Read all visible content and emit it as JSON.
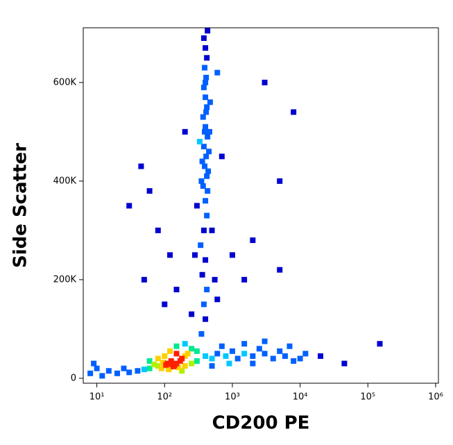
{
  "chart_data": {
    "type": "scatter",
    "x_label": "CD200 PE",
    "y_label": "Side Scatter",
    "xscale": "log",
    "xlim": [
      6.3,
      1100000
    ],
    "ylim": [
      -10000,
      711000
    ],
    "xticks": [
      {
        "value": 10,
        "label": "10¹"
      },
      {
        "value": 100,
        "label": "10²"
      },
      {
        "value": 1000,
        "label": "10³"
      },
      {
        "value": 10000,
        "label": "10⁴"
      },
      {
        "value": 100000,
        "label": "10⁵"
      },
      {
        "value": 1000000,
        "label": "10⁶"
      }
    ],
    "yticks": [
      0,
      {
        "value": 200000,
        "label": "200K"
      },
      {
        "value": 400000,
        "label": "400K"
      },
      {
        "value": 600000,
        "label": "600K"
      }
    ],
    "colormap": [
      "#0000d0",
      "#0060ff",
      "#00c8ff",
      "#00e890",
      "#b0f000",
      "#ffd000",
      "#ff2000"
    ],
    "x": [
      100,
      120,
      130,
      110,
      90,
      140,
      150,
      115,
      125,
      95,
      105,
      135,
      160,
      80,
      170,
      70,
      180,
      200,
      220,
      60,
      50,
      40,
      30,
      25,
      20,
      15,
      12,
      10,
      8,
      9,
      200,
      250,
      180,
      150,
      120,
      100,
      80,
      60,
      250,
      200,
      150,
      300,
      300,
      400,
      500,
      600,
      800,
      1000,
      1200,
      1500,
      2000,
      2500,
      3000,
      4000,
      5000,
      6000,
      8000,
      10000,
      12000,
      7000,
      3000,
      1500,
      700,
      20000,
      45000,
      150000,
      500,
      900,
      2000,
      350,
      400,
      380,
      420,
      360,
      400,
      340,
      380,
      420,
      400,
      370,
      420,
      390,
      410,
      380,
      430,
      400,
      370,
      420,
      400,
      380,
      410,
      390,
      420,
      400,
      380,
      430,
      360,
      450,
      440,
      330,
      350,
      460,
      470,
      300,
      500,
      280,
      550,
      600,
      250,
      430,
      390,
      410,
      400,
      30,
      45,
      60,
      80,
      120,
      150,
      1000,
      2000,
      5000,
      8000,
      3000,
      1500,
      700,
      100,
      50,
      5000,
      600,
      200
    ],
    "values": [
      25000,
      22000,
      28000,
      30000,
      20000,
      26000,
      30000,
      18000,
      35000,
      32000,
      27000,
      24000,
      22000,
      25000,
      35000,
      28000,
      40000,
      45000,
      50000,
      20000,
      18000,
      15000,
      12000,
      20000,
      10000,
      15000,
      5000,
      20000,
      10000,
      30000,
      25000,
      30000,
      15000,
      50000,
      55000,
      45000,
      40000,
      35000,
      60000,
      70000,
      65000,
      35000,
      55000,
      45000,
      40000,
      50000,
      45000,
      55000,
      40000,
      50000,
      45000,
      60000,
      50000,
      40000,
      55000,
      45000,
      35000,
      40000,
      50000,
      65000,
      75000,
      70000,
      65000,
      45000,
      30000,
      70000,
      25000,
      30000,
      30000,
      90000,
      120000,
      150000,
      180000,
      210000,
      240000,
      270000,
      300000,
      330000,
      360000,
      390000,
      410000,
      430000,
      450000,
      470000,
      490000,
      510000,
      530000,
      550000,
      570000,
      590000,
      610000,
      630000,
      650000,
      670000,
      690000,
      705000,
      440000,
      460000,
      420000,
      480000,
      400000,
      500000,
      560000,
      350000,
      300000,
      250000,
      200000,
      160000,
      130000,
      380000,
      500000,
      540000,
      600000,
      350000,
      430000,
      380000,
      300000,
      250000,
      180000,
      250000,
      280000,
      400000,
      540000,
      600000,
      200000,
      450000,
      150000,
      200000,
      220000,
      620000,
      500000
    ]
  }
}
